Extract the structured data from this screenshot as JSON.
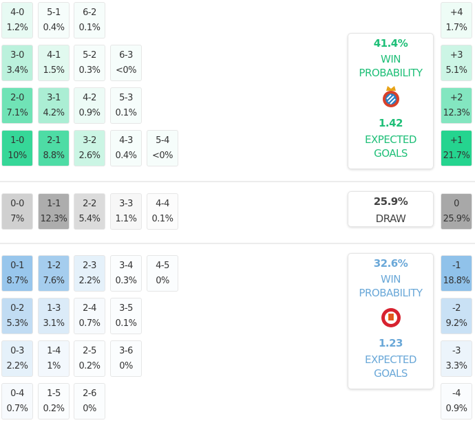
{
  "colors": {
    "home": "#22d38e",
    "draw": "#a8a8a8",
    "away": "#8fc1ea",
    "home_text": "#1fbf78",
    "away_text": "#6aa8d8",
    "draw_text": "#444444"
  },
  "home": {
    "win_pct": "41.4%",
    "win_label": "WIN PROBABILITY",
    "xg": "1.42",
    "xg_label": "EXPECTED GOALS",
    "crest_icon": "espanyol-crest-icon",
    "rows": [
      [
        {
          "s": "4-0",
          "p": "1.2%"
        },
        {
          "s": "5-1",
          "p": "0.4%"
        },
        {
          "s": "6-2",
          "p": "0.1%"
        }
      ],
      [
        {
          "s": "3-0",
          "p": "3.4%"
        },
        {
          "s": "4-1",
          "p": "1.5%"
        },
        {
          "s": "5-2",
          "p": "0.3%"
        },
        {
          "s": "6-3",
          "p": "<0%"
        }
      ],
      [
        {
          "s": "2-0",
          "p": "7.1%"
        },
        {
          "s": "3-1",
          "p": "4.2%"
        },
        {
          "s": "4-2",
          "p": "0.9%"
        },
        {
          "s": "5-3",
          "p": "0.1%"
        }
      ],
      [
        {
          "s": "1-0",
          "p": "10%"
        },
        {
          "s": "2-1",
          "p": "8.8%"
        },
        {
          "s": "3-2",
          "p": "2.6%"
        },
        {
          "s": "4-3",
          "p": "0.4%"
        },
        {
          "s": "5-4",
          "p": "<0%"
        }
      ]
    ],
    "margins": [
      {
        "s": "+4",
        "p": "1.7%"
      },
      {
        "s": "+3",
        "p": "5.1%"
      },
      {
        "s": "+2",
        "p": "12.3%"
      },
      {
        "s": "+1",
        "p": "21.7%"
      }
    ]
  },
  "draw": {
    "pct": "25.9%",
    "label": "DRAW",
    "rows": [
      [
        {
          "s": "0-0",
          "p": "7%"
        },
        {
          "s": "1-1",
          "p": "12.3%"
        },
        {
          "s": "2-2",
          "p": "5.4%"
        },
        {
          "s": "3-3",
          "p": "1.1%"
        },
        {
          "s": "4-4",
          "p": "0.1%"
        }
      ]
    ],
    "margins": [
      {
        "s": "0",
        "p": "25.9%"
      }
    ]
  },
  "away": {
    "win_pct": "32.6%",
    "win_label": "WIN PROBABILITY",
    "xg": "1.23",
    "xg_label": "EXPECTED GOALS",
    "crest_icon": "girona-crest-icon",
    "rows": [
      [
        {
          "s": "0-1",
          "p": "8.7%"
        },
        {
          "s": "1-2",
          "p": "7.6%"
        },
        {
          "s": "2-3",
          "p": "2.2%"
        },
        {
          "s": "3-4",
          "p": "0.3%"
        },
        {
          "s": "4-5",
          "p": "0%"
        }
      ],
      [
        {
          "s": "0-2",
          "p": "5.3%"
        },
        {
          "s": "1-3",
          "p": "3.1%"
        },
        {
          "s": "2-4",
          "p": "0.7%"
        },
        {
          "s": "3-5",
          "p": "0.1%"
        }
      ],
      [
        {
          "s": "0-3",
          "p": "2.2%"
        },
        {
          "s": "1-4",
          "p": "1%"
        },
        {
          "s": "2-5",
          "p": "0.2%"
        },
        {
          "s": "3-6",
          "p": "0%"
        }
      ],
      [
        {
          "s": "0-4",
          "p": "0.7%"
        },
        {
          "s": "1-5",
          "p": "0.2%"
        },
        {
          "s": "2-6",
          "p": "0%"
        }
      ]
    ],
    "margins": [
      {
        "s": "-1",
        "p": "18.8%"
      },
      {
        "s": "-2",
        "p": "9.2%"
      },
      {
        "s": "-3",
        "p": "3.3%"
      },
      {
        "s": "-4",
        "p": "0.9%"
      }
    ]
  }
}
